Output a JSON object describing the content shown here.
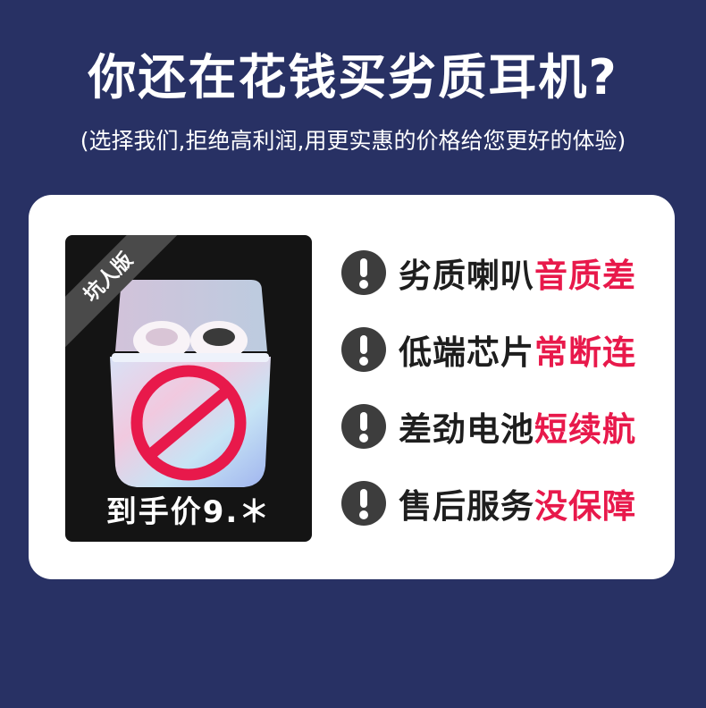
{
  "headline": "你还在花钱买劣质耳机?",
  "subline": "(选择我们,拒绝高利润,用更实惠的价格给您更好的体验)",
  "product_card": {
    "ribbon": "坑人版",
    "price": "到手价9.＊"
  },
  "features": [
    {
      "label": "劣质喇叭",
      "highlight": "音质差"
    },
    {
      "label": "低端芯片",
      "highlight": "常断连"
    },
    {
      "label": "差劲电池",
      "highlight": "短续航"
    },
    {
      "label": "售后服务",
      "highlight": "没保障"
    }
  ],
  "colors": {
    "background": "#283164",
    "highlight": "#e8194b",
    "icon": "#3d3d3d"
  }
}
